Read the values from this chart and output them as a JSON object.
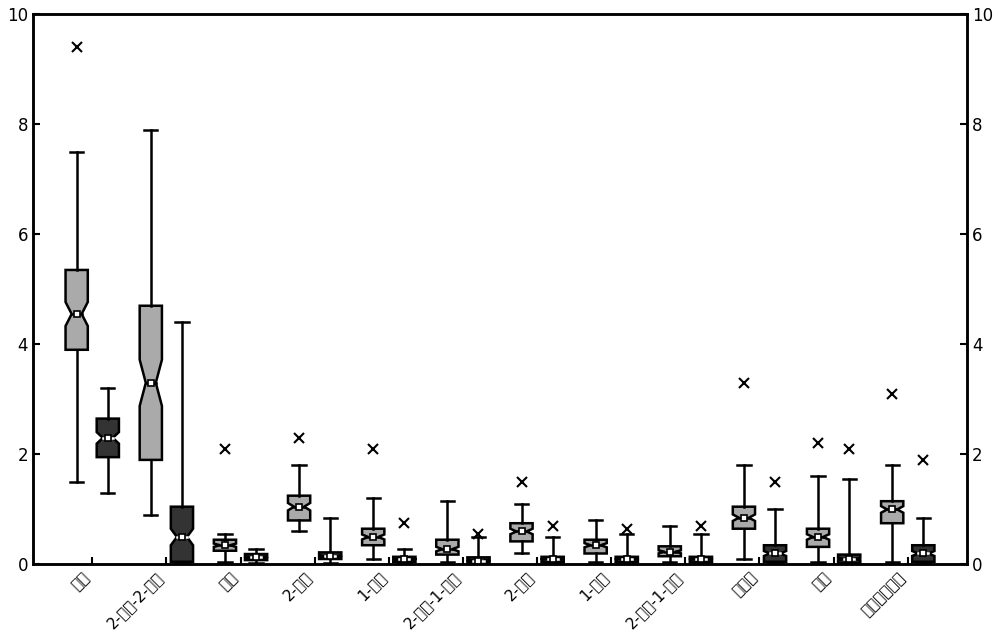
{
  "categories": [
    "丙酮",
    "2-甲基-2-丙醐",
    "乙醐",
    "2-戚酮",
    "1-丙醐",
    "2-甲基-1-丙醐",
    "2-戚醐",
    "1-丁醐",
    "2-甲基-1-丁醐",
    "乙偶姻",
    "吵和",
    "对甲基苯甲醇"
  ],
  "group1_color": "#aaaaaa",
  "group2_color": "#333333",
  "ylim": [
    0,
    10
  ],
  "yticks": [
    0,
    2,
    4,
    6,
    8,
    10
  ],
  "figsize": [
    10.0,
    6.38
  ],
  "dpi": 100,
  "box_width": 0.3,
  "group1": {
    "whislo": [
      1.5,
      0.9,
      0.05,
      0.6,
      0.1,
      0.05,
      0.2,
      0.05,
      0.05,
      0.1,
      0.05,
      0.05
    ],
    "q1": [
      3.9,
      1.9,
      0.25,
      0.8,
      0.35,
      0.18,
      0.42,
      0.2,
      0.15,
      0.65,
      0.32,
      0.75
    ],
    "med": [
      4.55,
      3.3,
      0.35,
      1.05,
      0.5,
      0.28,
      0.6,
      0.35,
      0.23,
      0.85,
      0.5,
      1.0
    ],
    "q3": [
      5.35,
      4.7,
      0.45,
      1.25,
      0.65,
      0.45,
      0.75,
      0.45,
      0.33,
      1.05,
      0.65,
      1.15
    ],
    "whishi": [
      7.5,
      7.9,
      0.55,
      1.8,
      1.2,
      1.15,
      1.1,
      0.8,
      0.7,
      1.8,
      1.6,
      1.8
    ],
    "fliers_y": [
      9.4,
      null,
      2.1,
      2.3,
      2.1,
      null,
      1.5,
      null,
      null,
      3.3,
      2.2,
      3.1
    ],
    "mean": [
      4.55,
      3.3,
      0.35,
      1.05,
      0.5,
      0.28,
      0.6,
      0.35,
      0.23,
      0.85,
      0.5,
      1.0
    ]
  },
  "group2": {
    "whislo": [
      1.3,
      0.05,
      0.02,
      0.02,
      0.02,
      0.0,
      0.0,
      0.0,
      0.02,
      0.0,
      0.0,
      0.0
    ],
    "q1": [
      1.95,
      0.05,
      0.08,
      0.1,
      0.05,
      0.03,
      0.04,
      0.04,
      0.04,
      0.05,
      0.03,
      0.05
    ],
    "med": [
      2.3,
      0.5,
      0.13,
      0.15,
      0.1,
      0.07,
      0.1,
      0.1,
      0.1,
      0.2,
      0.1,
      0.2
    ],
    "q3": [
      2.65,
      1.05,
      0.19,
      0.22,
      0.14,
      0.13,
      0.14,
      0.14,
      0.14,
      0.35,
      0.18,
      0.35
    ],
    "whishi": [
      3.2,
      4.4,
      0.28,
      0.85,
      0.28,
      0.5,
      0.5,
      0.55,
      0.55,
      1.0,
      1.55,
      0.85
    ],
    "fliers_y": [
      null,
      null,
      null,
      null,
      0.75,
      0.55,
      0.7,
      0.65,
      0.7,
      1.5,
      2.1,
      1.9
    ],
    "mean": [
      2.3,
      0.5,
      0.13,
      0.15,
      0.1,
      0.07,
      0.1,
      0.1,
      0.1,
      0.2,
      0.1,
      0.2
    ]
  }
}
